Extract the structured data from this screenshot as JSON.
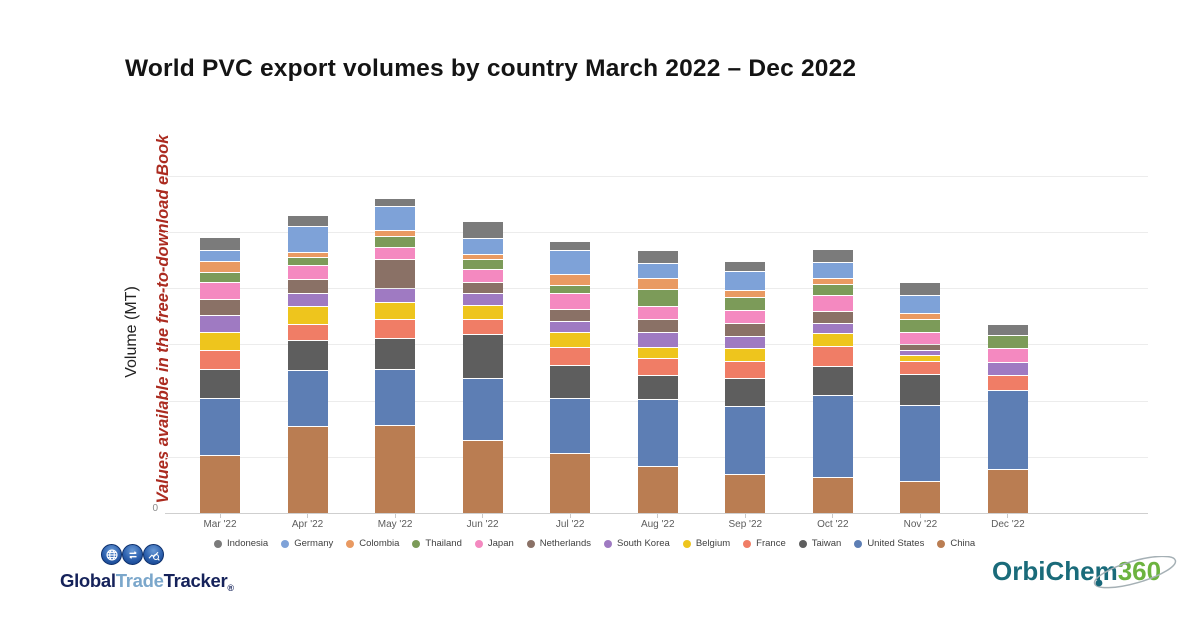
{
  "title": "World PVC export volumes by country March 2022 – Dec 2022",
  "y_axis": {
    "label": "Volume (MT)",
    "zero_tick": "0"
  },
  "watermark": {
    "text": "Values available in the free-to-download eBook",
    "color": "#ab2b20"
  },
  "chart_data": {
    "type": "bar",
    "stacked": true,
    "title": "World PVC export volumes by country March 2022 – Dec 2022",
    "xlabel": "",
    "ylabel": "Volume (MT)",
    "y_tick_labels_shown": [
      "0"
    ],
    "units_note": "Y-axis numeric values are hidden (watermark says values available in eBook); series values are relative estimates read from bar pixel heights, 1 gridline division = 56 units",
    "ylim": [
      0,
      340
    ],
    "grid": true,
    "legend_position": "bottom",
    "categories": [
      "Mar '22",
      "Apr '22",
      "May '22",
      "Jun '22",
      "Jul '22",
      "Aug '22",
      "Sep '22",
      "Oct '22",
      "Nov '22",
      "Dec '22"
    ],
    "stack_order_bottom_to_top": [
      "China",
      "United States",
      "Taiwan",
      "France",
      "Belgium",
      "South Korea",
      "Netherlands",
      "Japan",
      "Thailand",
      "Colombia",
      "Germany",
      "Indonesia"
    ],
    "series": [
      {
        "name": "Indonesia",
        "color": "#7b7b7b",
        "values": [
          12,
          10,
          7,
          16,
          8,
          12,
          9,
          12,
          12,
          10
        ]
      },
      {
        "name": "Germany",
        "color": "#7ea2d8",
        "values": [
          10,
          25,
          23,
          15,
          23,
          14,
          18,
          15,
          17,
          0
        ]
      },
      {
        "name": "Colombia",
        "color": "#e99a62",
        "values": [
          10,
          4,
          5,
          4,
          10,
          10,
          6,
          5,
          5,
          0
        ]
      },
      {
        "name": "Thailand",
        "color": "#7c9b59",
        "values": [
          9,
          7,
          10,
          9,
          7,
          16,
          12,
          10,
          12,
          12
        ]
      },
      {
        "name": "Japan",
        "color": "#f489c0",
        "values": [
          16,
          13,
          11,
          12,
          15,
          12,
          12,
          15,
          11,
          13
        ]
      },
      {
        "name": "Netherlands",
        "color": "#8a7166",
        "values": [
          15,
          13,
          28,
          10,
          11,
          12,
          12,
          11,
          5,
          0
        ]
      },
      {
        "name": "South Korea",
        "color": "#9f7ac2",
        "values": [
          16,
          12,
          13,
          11,
          10,
          14,
          11,
          9,
          4,
          12
        ]
      },
      {
        "name": "Belgium",
        "color": "#eec51d",
        "values": [
          17,
          17,
          16,
          13,
          14,
          10,
          12,
          12,
          5,
          0
        ]
      },
      {
        "name": "France",
        "color": "#f07d66",
        "values": [
          18,
          15,
          18,
          14,
          17,
          16,
          16,
          19,
          12,
          14
        ]
      },
      {
        "name": "Taiwan",
        "color": "#5e5e5e",
        "values": [
          28,
          29,
          30,
          43,
          32,
          23,
          27,
          28,
          30,
          0
        ]
      },
      {
        "name": "United States",
        "color": "#5d7eb4",
        "values": [
          56,
          55,
          55,
          61,
          54,
          66,
          67,
          81,
          75,
          78
        ]
      },
      {
        "name": "China",
        "color": "#ba7d52",
        "values": [
          57,
          86,
          87,
          72,
          59,
          46,
          38,
          35,
          31,
          43
        ]
      }
    ]
  },
  "footer": {
    "gtt": {
      "parts": [
        {
          "text": "Global",
          "color": "#15225a"
        },
        {
          "text": "Trade",
          "color": "#7ba7cb"
        },
        {
          "text": "Tracker",
          "color": "#15225a"
        }
      ],
      "registered": "®",
      "icons": [
        "globe-icon",
        "trade-arrows-icon",
        "chart-magnifier-icon"
      ]
    },
    "orbichem": {
      "parts": [
        {
          "text": "OrbiChem",
          "color": "#1a6b7a"
        },
        {
          "text": "360",
          "color": "#6cb33f"
        }
      ]
    }
  }
}
